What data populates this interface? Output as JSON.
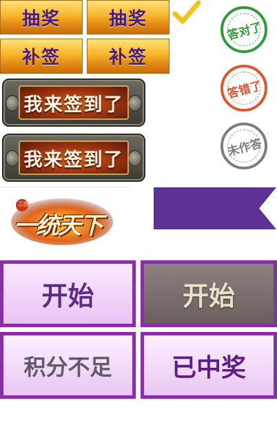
{
  "gold_buttons": {
    "draw_1": "抽奖",
    "draw_2": "抽奖",
    "makeup_1": "补签",
    "makeup_2": "补签"
  },
  "checkin_buttons": {
    "label_1": "我来签到了",
    "label_2": "我来签到了"
  },
  "stamps": {
    "correct": "答对了",
    "wrong": "答错了",
    "unanswered": "未作答"
  },
  "logo": {
    "text": "一统天下",
    "small_mark": "三国"
  },
  "lottery_buttons": {
    "start": "开始",
    "start_disabled": "开始",
    "insufficient_points": "积分不足",
    "already_won": "已中奖"
  },
  "colors": {
    "gold_text": "#4a1a7a",
    "correct_stamp": "#2e9b3a",
    "wrong_stamp": "#e0552d",
    "unanswered_stamp": "#7d7d7d",
    "ribbon": "#5e3294",
    "frame_purple": "#8a2ea8"
  },
  "icons": {
    "check": "checkmark-icon"
  }
}
